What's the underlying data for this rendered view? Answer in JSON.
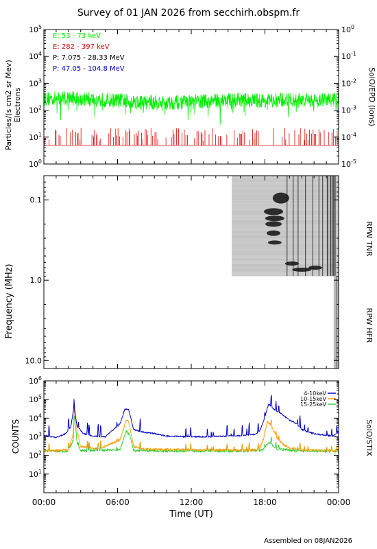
{
  "title": "Survey of 01 JAN 2026 from secchirh.obspm.fr",
  "footer": "Assembled on 08JAN2026",
  "chart_data": [
    {
      "type": "line",
      "panel": "SoIO/EPD",
      "ylabel_left": "Particles/(s cm2 sr Mev)",
      "ylabel_left2": "Electrons",
      "ylabel_right": "SolO/EPD (ions)",
      "yscale": "log",
      "ylim": [
        1,
        100000
      ],
      "ylim_right": [
        1e-05,
        1
      ],
      "legend_position": "top-left",
      "left_ticks": [
        {
          "base": "10",
          "exp": "0"
        },
        {
          "base": "10",
          "exp": "1"
        },
        {
          "base": "10",
          "exp": "2"
        },
        {
          "base": "10",
          "exp": "3"
        },
        {
          "base": "10",
          "exp": "4"
        },
        {
          "base": "10",
          "exp": "5"
        }
      ],
      "right_ticks": [
        {
          "base": "10",
          "exp": "-5"
        },
        {
          "base": "10",
          "exp": "-4"
        },
        {
          "base": "10",
          "exp": "-3"
        },
        {
          "base": "10",
          "exp": "-2"
        },
        {
          "base": "10",
          "exp": "-1"
        },
        {
          "base": "10",
          "exp": "0"
        }
      ],
      "legend": [
        {
          "label": "E: 53 - 73 keV",
          "color": "#00ee00"
        },
        {
          "label": "E: 282 - 397 keV",
          "color": "#dd0000"
        },
        {
          "label": "P: 7.075 - 28.33 MeV",
          "color": "#000000"
        },
        {
          "label": "P: 47.05 - 104.8 MeV",
          "color": "#0000cc"
        }
      ],
      "series": [
        {
          "name": "E: 53 - 73 keV",
          "color": "#00ee00",
          "x": [
            0,
            2,
            4,
            6,
            8,
            10,
            12,
            14,
            16,
            18,
            20,
            22,
            24
          ],
          "values": [
            260,
            290,
            250,
            230,
            200,
            190,
            200,
            230,
            240,
            220,
            240,
            230,
            250
          ]
        },
        {
          "name": "E: 282 - 397 keV",
          "color": "#dd0000",
          "x": [
            0,
            24
          ],
          "values": [
            5,
            5
          ],
          "spikes_to": 15
        }
      ]
    },
    {
      "type": "heatmap",
      "panel": "RPW",
      "ylabel": "Frequency (MHz)",
      "label_upper": "RPW TNR",
      "label_lower": "RPW HFR",
      "yscale": "log",
      "ylim": [
        12.6,
        0.05
      ],
      "yticks": [
        "0.1",
        "1.0",
        "10.0"
      ],
      "tnr_coverage_hours": [
        15.3,
        24
      ],
      "hfr_coverage_hours": [
        23.6,
        24
      ]
    },
    {
      "type": "line",
      "panel": "SoIO/STIX",
      "ylabel": "COUNTS",
      "ylabel_right": "SolO/STIX",
      "xlabel": "Time (UT)",
      "yscale": "log",
      "ylim": [
        1,
        1000000
      ],
      "xlim": [
        0,
        24
      ],
      "legend_position": "top-right",
      "y_ticks": [
        {
          "base": "10",
          "exp": "1"
        },
        {
          "base": "10",
          "exp": "2"
        },
        {
          "base": "10",
          "exp": "3"
        },
        {
          "base": "10",
          "exp": "4"
        },
        {
          "base": "10",
          "exp": "5"
        },
        {
          "base": "10",
          "exp": "6"
        }
      ],
      "x_ticks": [
        "00:00",
        "06:00",
        "12:00",
        "18:00",
        "00:00"
      ],
      "series": [
        {
          "name": "4-10keV",
          "color": "#0000cc",
          "x": [
            0,
            1.0,
            1.8,
            2.2,
            2.45,
            2.7,
            3.2,
            4.0,
            5.0,
            6.2,
            6.6,
            6.9,
            7.3,
            8.0,
            9.0,
            10.0,
            11.0,
            12.0,
            13.0,
            14.0,
            15.0,
            16.0,
            17.0,
            17.5,
            17.9,
            18.3,
            18.7,
            19.2,
            20.0,
            20.6,
            21.0,
            21.5,
            22.0,
            22.5,
            23.0,
            23.5,
            24.0
          ],
          "values": [
            1200,
            900,
            1500,
            3500,
            40000,
            4000,
            1500,
            1100,
            1000,
            5000,
            30000,
            30000,
            2500,
            1800,
            1500,
            1100,
            1050,
            1000,
            1000,
            1050,
            1100,
            1150,
            1300,
            1600,
            7000,
            60000,
            30000,
            20000,
            8000,
            5000,
            2500,
            1800,
            1500,
            1300,
            1200,
            1100,
            1700
          ]
        },
        {
          "name": "10-15keV",
          "color": "#ff9900",
          "x": [
            0,
            1.0,
            2.0,
            2.4,
            2.5,
            2.7,
            3.0,
            4.5,
            6.2,
            6.7,
            6.9,
            7.3,
            8.0,
            12.0,
            16.0,
            17.5,
            17.9,
            18.2,
            18.6,
            19.0,
            19.5,
            20.0,
            21.0,
            22.0,
            24.0
          ],
          "values": [
            180,
            180,
            200,
            1500,
            70000,
            2000,
            300,
            220,
            700,
            8000,
            7000,
            300,
            220,
            200,
            190,
            200,
            800,
            7000,
            3000,
            800,
            400,
            250,
            200,
            190,
            180
          ]
        },
        {
          "name": "15-25keV",
          "color": "#33cc33",
          "x": [
            0,
            2.0,
            2.4,
            2.5,
            2.7,
            3.0,
            6.2,
            6.7,
            7.0,
            7.3,
            12.0,
            16.0,
            17.8,
            18.3,
            19.0,
            21.0,
            24.0
          ],
          "values": [
            170,
            170,
            700,
            15000,
            500,
            180,
            200,
            2000,
            1200,
            180,
            170,
            170,
            190,
            500,
            220,
            170,
            170
          ]
        }
      ]
    }
  ]
}
